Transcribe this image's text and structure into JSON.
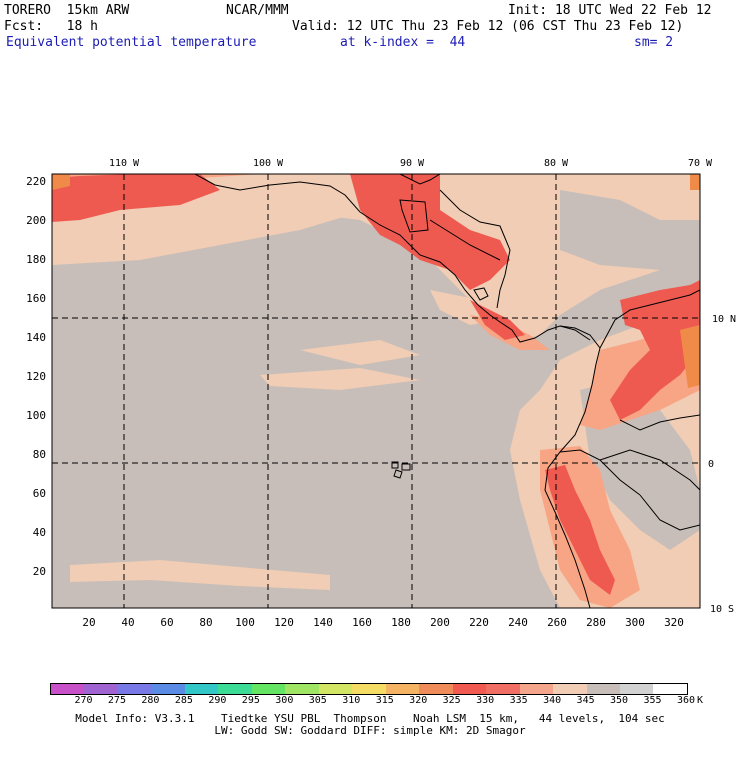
{
  "header": {
    "model": "TORERO  15km ARW",
    "org": "NCAR/MMM",
    "init": "Init: 18 UTC Wed 22 Feb 12",
    "fcst": "Fcst:   18 h",
    "valid": "Valid: 12 UTC Thu 23 Feb 12 (06 CST Thu 23 Feb 12)",
    "field": "Equivalent potential temperature",
    "level": "at k-index =  44",
    "smooth": "sm= 2"
  },
  "map": {
    "lon_labels": [
      "110 W",
      "100 W",
      "90 W",
      "80 W",
      "70 W"
    ],
    "lat_labels": [
      "10 N",
      "0",
      "10 S"
    ],
    "x_ticks": [
      "20",
      "40",
      "60",
      "80",
      "100",
      "120",
      "140",
      "160",
      "180",
      "200",
      "220",
      "240",
      "260",
      "280",
      "300",
      "320"
    ],
    "y_ticks": [
      "220",
      "200",
      "180",
      "160",
      "140",
      "120",
      "100",
      "80",
      "60",
      "40",
      "20"
    ],
    "colors": {
      "background": "#c8beb9",
      "warm1": "#f0cdb4",
      "warm2": "#f7a585",
      "warm3": "#ef5a50",
      "hot": "#f08a48"
    }
  },
  "colorbar": {
    "unit": "K",
    "labels": [
      "270",
      "275",
      "280",
      "285",
      "290",
      "295",
      "300",
      "305",
      "310",
      "315",
      "320",
      "325",
      "330",
      "335",
      "340",
      "345",
      "350",
      "355",
      "360"
    ],
    "colors": [
      "#c850c8",
      "#a064d2",
      "#7878e6",
      "#5a8ce6",
      "#32c8c8",
      "#3cdc96",
      "#64e664",
      "#a0e664",
      "#d2e664",
      "#f5dc64",
      "#f5b464",
      "#f08c5a",
      "#f05a50",
      "#f06e64",
      "#f5a58c",
      "#f0cdb4",
      "#c8beb9",
      "#d2d2d2",
      "#ffffff"
    ]
  },
  "footer": {
    "line1": "Model Info: V3.3.1    Tiedtke YSU PBL  Thompson    Noah LSM  15 km,   44 levels,  104 sec",
    "line2": "LW: Godd SW: Goddard DIFF: simple KM: 2D Smagor"
  }
}
